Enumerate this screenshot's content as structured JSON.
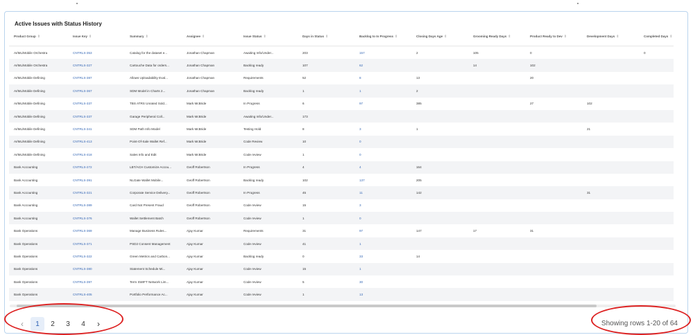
{
  "card": {
    "title": "Active Issues with Status History"
  },
  "columns": [
    "Product Group",
    "Issue Key",
    "Summary",
    "Assignee",
    "Issue Status",
    "Days in Status",
    "Backlog to In Progress",
    "Closing Days Age",
    "Grooming Ready Days",
    "Product Ready to Dev",
    "Development Days",
    "Completed Days"
  ],
  "rows": [
    [
      "AI/ML/Mobile Orchestra",
      "CNTRLS-353",
      "Catalog for the dataset e...",
      "Jonathan Chapman",
      "Awaiting Info/Under...",
      "203",
      "157",
      "2",
      "105",
      "0",
      "",
      "0"
    ],
    [
      "AI/ML/Mobile Orchestra",
      "CNTRLS-327",
      "Cartouche Data for orders...",
      "Jonathan Chapman",
      "Backlog ready",
      "107",
      "62",
      "",
      "14",
      "102",
      "",
      ""
    ],
    [
      "AI/ML/Mobile Defining",
      "CNTRLS-387",
      "Allows Uploadability Eval...",
      "Jonathan Chapman",
      "Requirements",
      "52",
      "8",
      "13",
      "",
      "20",
      "",
      ""
    ],
    [
      "AI/ML/Mobile Defining",
      "CNTRLS-367",
      "SDM Model in Charts 2...",
      "Jonathan Chapman",
      "Backlog ready",
      "1",
      "1",
      "2",
      "",
      "",
      "",
      ""
    ],
    [
      "AI/ML/Mobile Defining",
      "CNTRLS-337",
      "TBS ATRS Unrated Sold...",
      "Mark McBride",
      "In Progress",
      "6",
      "97",
      "385",
      "",
      "27",
      "102",
      ""
    ],
    [
      "AI/ML/Mobile Defining",
      "CNTRLS-337",
      "Garage Peripheral Coll...",
      "Mark McBride",
      "Awaiting Info/Under...",
      "173",
      "",
      "",
      "",
      "",
      "",
      ""
    ],
    [
      "AI/ML/Mobile Defining",
      "CNTRLS-341",
      "SDM Path Info Model",
      "Mark McBride",
      "Testing Hold",
      "8",
      "3",
      "1",
      "",
      "",
      "21",
      ""
    ],
    [
      "AI/ML/Mobile Defining",
      "CNTRLS-413",
      "Point-Of-Sale Wallet Ref...",
      "Mark McBride",
      "Code Review",
      "10",
      "0",
      "",
      "",
      "",
      "",
      ""
    ],
    [
      "AI/ML/Mobile Defining",
      "CNTRLS-418",
      "Sales Info and Edit",
      "Mark McBride",
      "Code review",
      "1",
      "0",
      "",
      "",
      "",
      "",
      ""
    ],
    [
      "Bank Accounting",
      "CNTRLS-272",
      "LBT/ACH Customize Accou...",
      "Geoff Robertson",
      "In Progress",
      "4",
      "4",
      "164",
      "",
      "",
      "",
      ""
    ],
    [
      "Bank Accounting",
      "CNTRLS-391",
      "NLGate Wallet Mobile...",
      "Geoff Robertson",
      "Backlog ready",
      "102",
      "137",
      "205",
      "",
      "",
      "",
      ""
    ],
    [
      "Bank Accounting",
      "CNTRLS-321",
      "Corporate Service Delivery...",
      "Geoff Robertson",
      "In Progress",
      "45",
      "11",
      "142",
      "",
      "",
      "31",
      ""
    ],
    [
      "Bank Accounting",
      "CNTRLS-389",
      "Card Not Present Fraud",
      "Geoff Robertson",
      "Code review",
      "15",
      "3",
      "",
      "",
      "",
      "",
      ""
    ],
    [
      "Bank Accounting",
      "CNTRLS-376",
      "Wallet Settlement Batch",
      "Geoff Robertson",
      "Code review",
      "1",
      "0",
      "",
      "",
      "",
      "",
      ""
    ],
    [
      "Bank Operations",
      "CNTRLS-369",
      "Manage Business Rules...",
      "Ajay Kumar",
      "Requirements",
      "31",
      "97",
      "147",
      "17",
      "31",
      "",
      ""
    ],
    [
      "Bank Operations",
      "CNTRLS-371",
      "PSD2 Consent Management",
      "Ajay Kumar",
      "Code review",
      "41",
      "1",
      "",
      "",
      "",
      "",
      ""
    ],
    [
      "Bank Operations",
      "CNTRLS-322",
      "Green Metrics and Carbon...",
      "Ajay Kumar",
      "Backlog ready",
      "0",
      "33",
      "14",
      "",
      "",
      "",
      ""
    ],
    [
      "Bank Operations",
      "CNTRLS-380",
      "Statement Schedule Mi...",
      "Ajay Kumar",
      "Code review",
      "15",
      "1",
      "",
      "",
      "",
      "",
      ""
    ],
    [
      "Bank Operations",
      "CNTRLS-397",
      "Term SWIFT Network Lim...",
      "Ajay Kumar",
      "Code review",
      "5",
      "30",
      "",
      "",
      "",
      "",
      ""
    ],
    [
      "Bank Operations",
      "CNTRLS-405",
      "Portfolio Performance Ac...",
      "Ajay Kumar",
      "Code review",
      "1",
      "13",
      "",
      "",
      "",
      "",
      ""
    ]
  ],
  "pagination": {
    "prev_icon": "‹",
    "pages": [
      "1",
      "2",
      "3",
      "4"
    ],
    "active_page": "1",
    "next_icon": "›",
    "summary": "Showing rows 1-20 of 64"
  },
  "colors": {
    "highlight": "#dd2222",
    "link": "#3567b5",
    "card_border": "#b9d4ee"
  }
}
